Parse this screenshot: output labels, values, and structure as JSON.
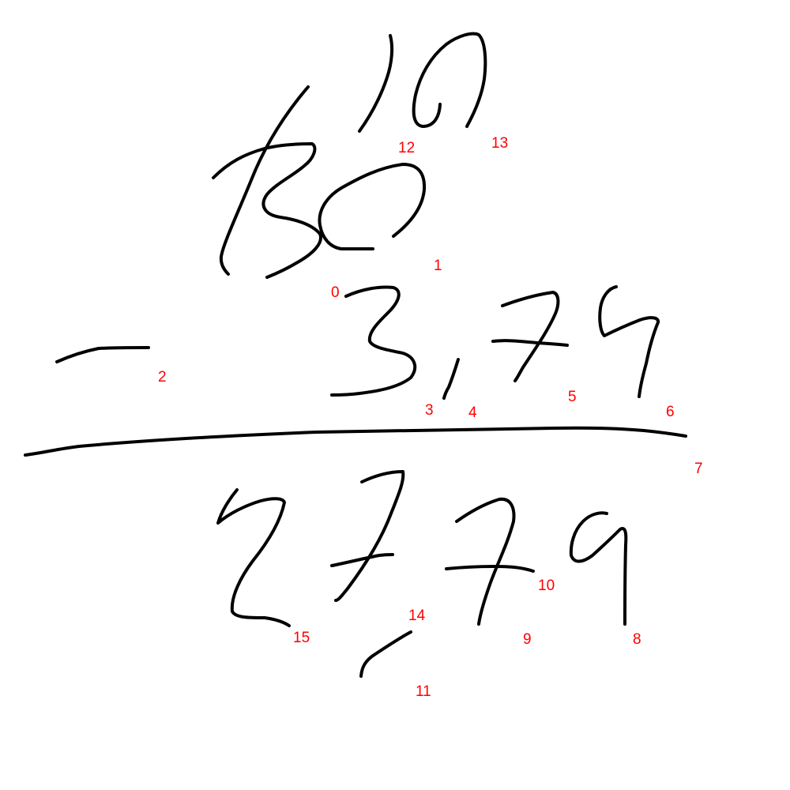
{
  "colors": {
    "background": "#ffffff",
    "ink": "#000000",
    "label": "#ff0000"
  },
  "strokes": [
    {
      "id": 0,
      "label": "0",
      "content": "3"
    },
    {
      "id": 1,
      "label": "1",
      "content": "0"
    },
    {
      "id": 2,
      "label": "2",
      "content": "minus"
    },
    {
      "id": 3,
      "label": "3",
      "content": "3"
    },
    {
      "id": 4,
      "label": "4",
      "content": "comma"
    },
    {
      "id": 5,
      "label": "5",
      "content": "7"
    },
    {
      "id": 6,
      "label": "6",
      "content": "9"
    },
    {
      "id": 7,
      "label": "7",
      "content": "result-line"
    },
    {
      "id": 8,
      "label": "8",
      "content": "9"
    },
    {
      "id": 9,
      "label": "9",
      "content": "7"
    },
    {
      "id": 10,
      "label": "10",
      "content": "7-bar"
    },
    {
      "id": 11,
      "label": "11",
      "content": "comma"
    },
    {
      "id": 12,
      "label": "12",
      "content": "1"
    },
    {
      "id": 13,
      "label": "13",
      "content": "0"
    },
    {
      "id": 14,
      "label": "14",
      "content": "7"
    },
    {
      "id": 15,
      "label": "15",
      "content": "2"
    }
  ]
}
